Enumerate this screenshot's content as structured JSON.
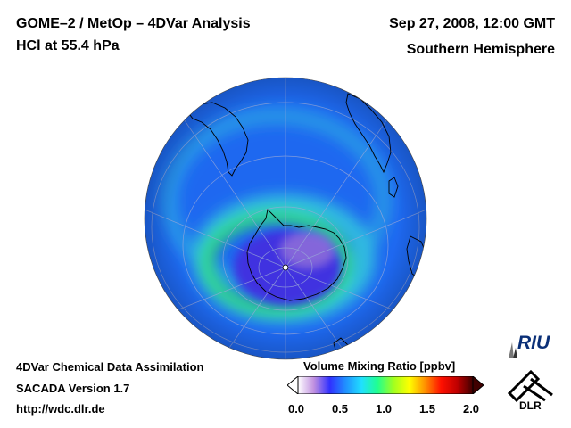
{
  "header": {
    "title_line1": "GOME–2 / MetOp – 4DVar Analysis",
    "title_line2": "HCl at 55.4 hPa",
    "date": "Sep 27, 2008, 12:00 GMT",
    "hemisphere": "Southern Hemisphere"
  },
  "footer": {
    "line1": "4DVar Chemical Data Assimilation",
    "line2": "SACADA Version 1.7",
    "line3": "http://wdc.dlr.de"
  },
  "colorbar": {
    "title": "Volume Mixing Ratio [ppbv]",
    "ticks": [
      "0.0",
      "0.5",
      "1.0",
      "1.5",
      "2.0"
    ],
    "min": 0.0,
    "max": 2.0,
    "colors": [
      "#ffffff",
      "#c090e0",
      "#3030ff",
      "#2090ff",
      "#20e0ff",
      "#20ff90",
      "#a0ff20",
      "#ffff00",
      "#ff9000",
      "#ff1000",
      "#c00000",
      "#400000"
    ]
  },
  "logos": {
    "riu": "RIU",
    "dlr": "DLR"
  },
  "map": {
    "projection": "orthographic",
    "center": "south-pole",
    "field_colors": {
      "background": "#1e68f0",
      "low": "#4030e0",
      "depleted": "#9070d8",
      "collar_green": "#30e070",
      "collar_cyan": "#30c0e0",
      "coast": "#000000",
      "grid": "#9aa8d8"
    }
  }
}
